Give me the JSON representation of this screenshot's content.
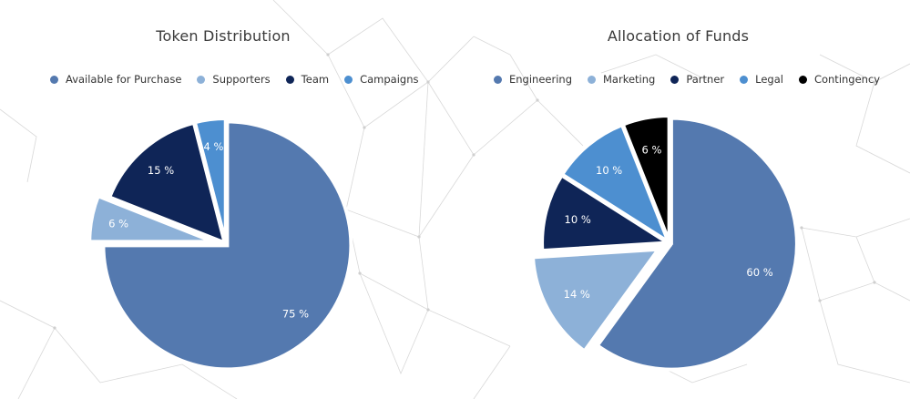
{
  "chart_data": [
    {
      "type": "pie",
      "title": "Token Distribution",
      "legend_position": "top",
      "exploded": true,
      "slices": [
        {
          "label": "Available for Purchase",
          "value": 75,
          "value_label": "75 %",
          "color": "#5479af"
        },
        {
          "label": "Supporters",
          "value": 6,
          "value_label": "6 %",
          "color": "#8db1d8"
        },
        {
          "label": "Team",
          "value": 15,
          "value_label": "15 %",
          "color": "#0f2557"
        },
        {
          "label": "Campaigns",
          "value": 4,
          "value_label": "4 %",
          "color": "#4d8fd0"
        }
      ]
    },
    {
      "type": "pie",
      "title": "Allocation of Funds",
      "legend_position": "top",
      "exploded": true,
      "slices": [
        {
          "label": "Engineering",
          "value": 60,
          "value_label": "60 %",
          "color": "#5479af"
        },
        {
          "label": "Marketing",
          "value": 14,
          "value_label": "14 %",
          "color": "#8db1d8"
        },
        {
          "label": "Partner",
          "value": 10,
          "value_label": "10 %",
          "color": "#0f2557"
        },
        {
          "label": "Legal",
          "value": 10,
          "value_label": "10 %",
          "color": "#4d8fd0"
        },
        {
          "label": "Contingency",
          "value": 6,
          "value_label": "6 %",
          "color": "#000000"
        }
      ]
    }
  ]
}
